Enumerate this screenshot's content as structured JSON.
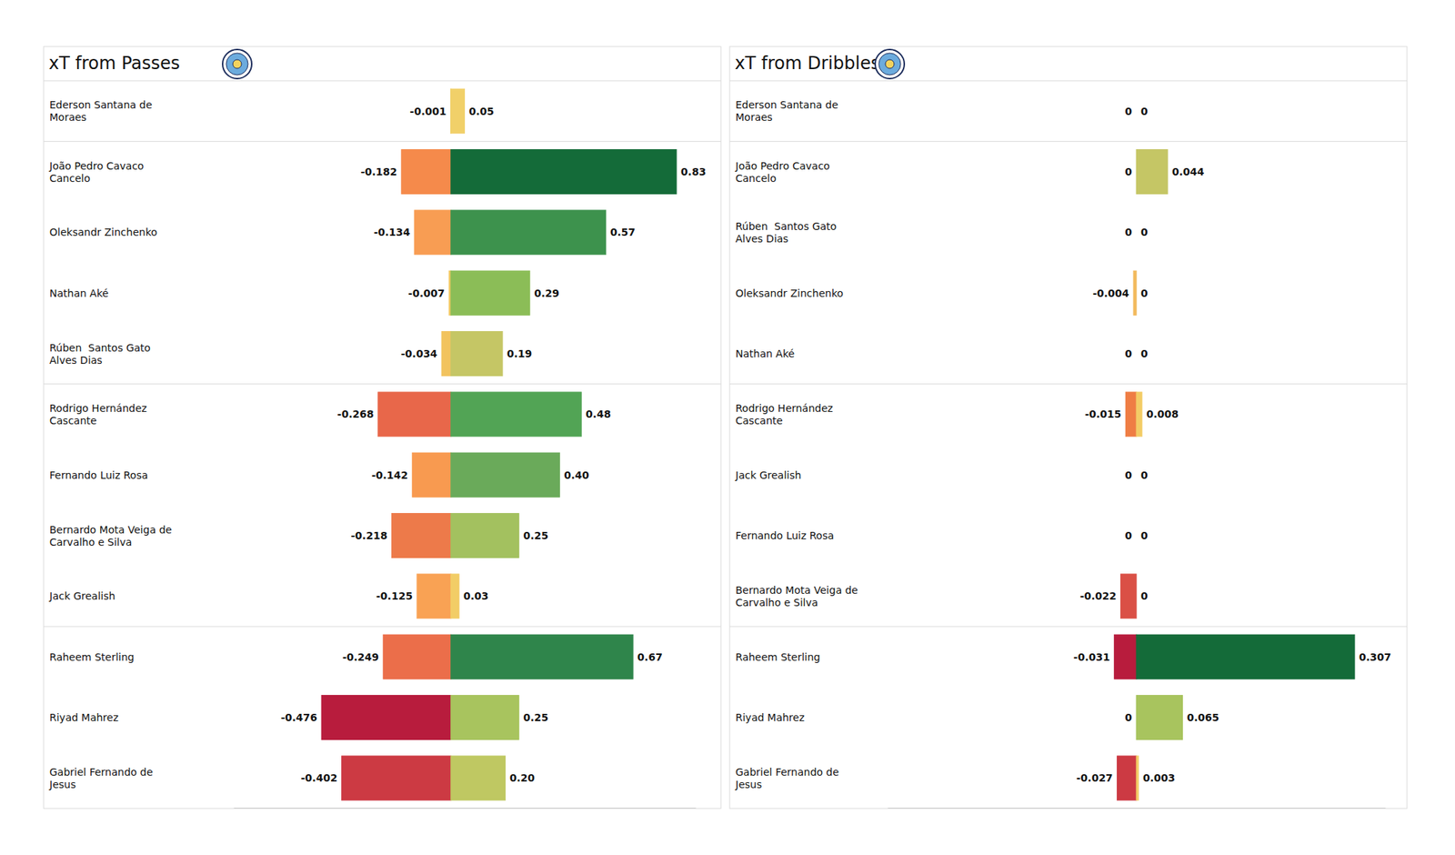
{
  "chart_data": [
    {
      "type": "bar",
      "title": "xT from Passes",
      "orientation": "horizontal",
      "data_labels": true,
      "tick_labels": false,
      "categories": [
        "Ederson Santana de Moraes",
        "João Pedro Cavaco Cancelo",
        "Oleksandr Zinchenko",
        "Nathan Aké",
        "Rúben  Santos Gato Alves Dias",
        "Rodrigo Hernández Cascante",
        "Fernando Luiz Rosa",
        "Bernardo Mota Veiga de Carvalho e Silva",
        "Jack Grealish",
        "Raheem Sterling",
        "Riyad Mahrez",
        "Gabriel Fernando de Jesus"
      ],
      "xlim": [
        -0.8,
        0.9
      ],
      "series": [
        {
          "values": [
            -0.001,
            -0.182,
            -0.134,
            -0.007,
            -0.034,
            -0.268,
            -0.142,
            -0.218,
            -0.125,
            -0.249,
            -0.476,
            -0.402
          ],
          "value_labels": [
            "-0.001",
            "-0.182",
            "-0.134",
            "-0.007",
            "-0.034",
            "-0.268",
            "-0.142",
            "-0.218",
            "-0.125",
            "-0.249",
            "-0.476",
            "-0.402"
          ],
          "colors": [
            "#f0d060",
            "#f58a4b",
            "#f89d53",
            "#f0c860",
            "#f2c35e",
            "#e8674a",
            "#f89a50",
            "#ed7a4a",
            "#f9a254",
            "#eb6e4a",
            "#b81c3d",
            "#cc3a43"
          ]
        },
        {
          "values": [
            0.05,
            0.83,
            0.57,
            0.29,
            0.19,
            0.48,
            0.4,
            0.25,
            0.03,
            0.67,
            0.25,
            0.2
          ],
          "value_labels": [
            "0.05",
            "0.83",
            "0.57",
            "0.29",
            "0.19",
            "0.48",
            "0.40",
            "0.25",
            "0.03",
            "0.67",
            "0.25",
            "0.20"
          ],
          "colors": [
            "#f1d069",
            "#146b39",
            "#3d924d",
            "#8bbd57",
            "#c5c665",
            "#52a455",
            "#6aaa5a",
            "#a3c15f",
            "#f2cd66",
            "#2f854b",
            "#a8c45e",
            "#bfc862"
          ]
        }
      ]
    },
    {
      "type": "bar",
      "title": "xT from Dribbles",
      "orientation": "horizontal",
      "data_labels": true,
      "tick_labels": false,
      "categories": [
        "Ederson Santana de Moraes",
        "João Pedro Cavaco Cancelo",
        "Rúben  Santos Gato Alves Dias",
        "Oleksandr Zinchenko",
        "Nathan Aké",
        "Rodrigo Hernández Cascante",
        "Jack Grealish",
        "Fernando Luiz Rosa",
        "Bernardo Mota Veiga de Carvalho e Silva",
        "Raheem Sterling",
        "Riyad Mahrez",
        "Gabriel Fernando de Jesus"
      ],
      "xlim": [
        -0.35,
        0.35
      ],
      "series": [
        {
          "values": [
            0,
            0,
            0,
            -0.004,
            0,
            -0.015,
            0,
            0,
            -0.022,
            -0.031,
            0,
            -0.027
          ],
          "value_labels": [
            "0",
            "0",
            "0",
            "-0.004",
            "0",
            "-0.015",
            "0",
            "0",
            "-0.022",
            "-0.031",
            "0",
            "-0.027"
          ],
          "colors": [
            "#f0d060",
            "#f0d060",
            "#f0d060",
            "#f2b95c",
            "#f0d060",
            "#ef7d44",
            "#f0d060",
            "#f0d060",
            "#da5046",
            "#b81c3d",
            "#f0d060",
            "#cc3a43"
          ]
        },
        {
          "values": [
            0,
            0.044,
            0,
            0,
            0,
            0.008,
            0,
            0,
            0,
            0.307,
            0.065,
            0.003
          ],
          "value_labels": [
            "0",
            "0.044",
            "0",
            "0",
            "0",
            "0.008",
            "0",
            "0",
            "0",
            "0.307",
            "0.065",
            "0.003"
          ],
          "colors": [
            "#f0d060",
            "#c5c665",
            "#f0d060",
            "#f0d060",
            "#f0d060",
            "#f3cc66",
            "#f0d060",
            "#f0d060",
            "#f0d060",
            "#146b39",
            "#a8c45e",
            "#f3cc66"
          ]
        }
      ]
    }
  ]
}
